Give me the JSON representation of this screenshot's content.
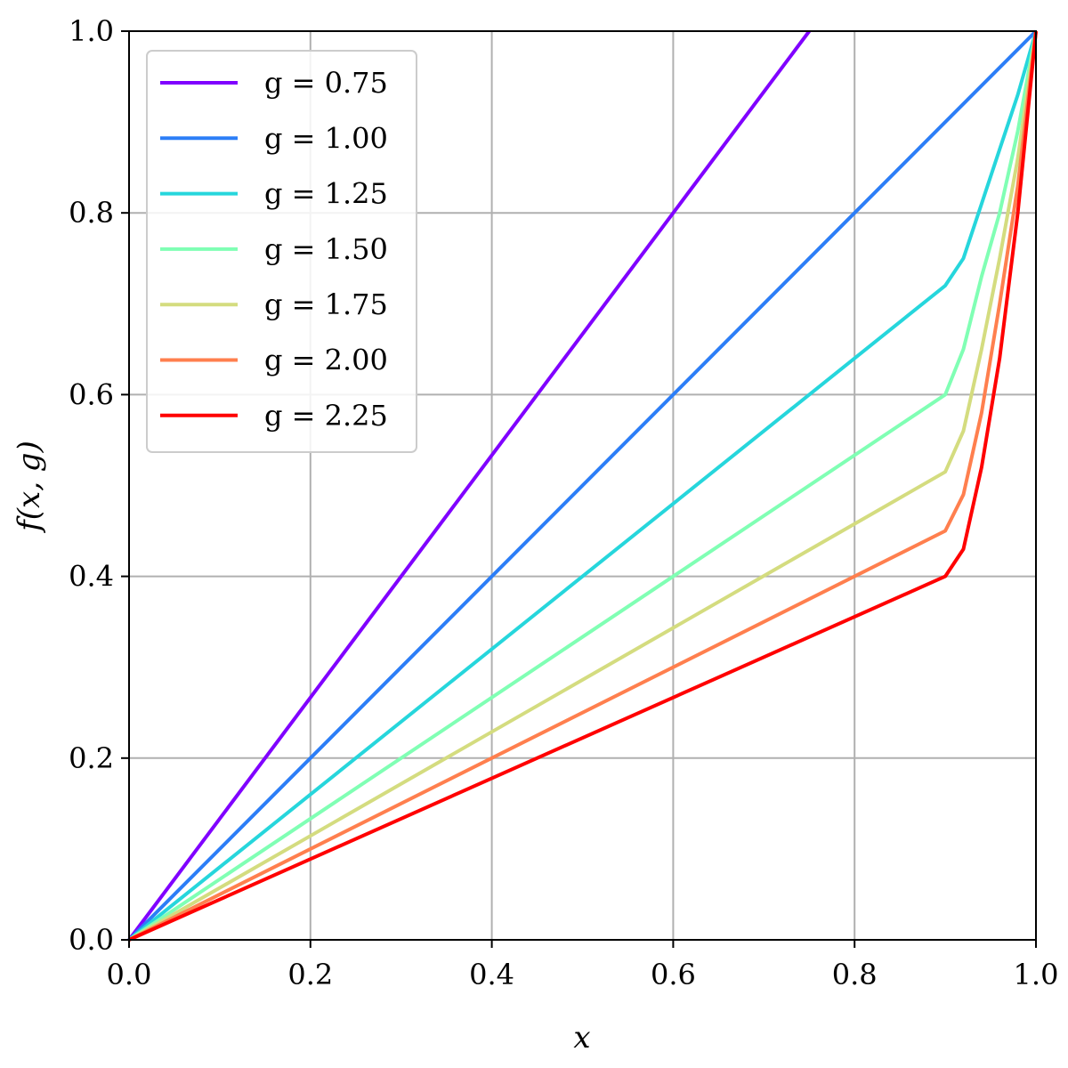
{
  "chart_data": {
    "type": "line",
    "xlabel": "x",
    "ylabel": "f(x, g)",
    "xlim": [
      0,
      1
    ],
    "ylim": [
      0,
      1
    ],
    "grid": true,
    "legend_position": "top-left",
    "xticks": [
      "0.0",
      "0.2",
      "0.4",
      "0.6",
      "0.8",
      "1.0"
    ],
    "yticks": [
      "0.0",
      "0.2",
      "0.4",
      "0.6",
      "0.8",
      "1.0"
    ],
    "series": [
      {
        "name": "g = 0.75",
        "color": "#8000ff",
        "x": [
          0,
          0.75
        ],
        "y": [
          0,
          1.0
        ]
      },
      {
        "name": "g = 1.00",
        "color": "#2c7ef7",
        "x": [
          0,
          1.0
        ],
        "y": [
          0,
          1.0
        ]
      },
      {
        "name": "g = 1.25",
        "color": "#26d6dc",
        "x": [
          0,
          0.9,
          0.92,
          0.94,
          0.96,
          0.98,
          1.0
        ],
        "y": [
          0,
          0.72,
          0.75,
          0.81,
          0.87,
          0.93,
          1.0
        ]
      },
      {
        "name": "g = 1.50",
        "color": "#80ffb4",
        "x": [
          0,
          0.9,
          0.92,
          0.94,
          0.96,
          0.98,
          1.0
        ],
        "y": [
          0,
          0.6,
          0.65,
          0.73,
          0.8,
          0.89,
          1.0
        ]
      },
      {
        "name": "g = 1.75",
        "color": "#d4dc7f",
        "x": [
          0,
          0.9,
          0.92,
          0.94,
          0.96,
          0.98,
          1.0
        ],
        "y": [
          0,
          0.515,
          0.56,
          0.65,
          0.75,
          0.86,
          1.0
        ]
      },
      {
        "name": "g = 2.00",
        "color": "#ff7f4e",
        "x": [
          0,
          0.9,
          0.92,
          0.94,
          0.96,
          0.98,
          1.0
        ],
        "y": [
          0,
          0.45,
          0.49,
          0.58,
          0.7,
          0.83,
          1.0
        ]
      },
      {
        "name": "g = 2.25",
        "color": "#ff0000",
        "x": [
          0,
          0.9,
          0.92,
          0.94,
          0.96,
          0.98,
          1.0
        ],
        "y": [
          0,
          0.4,
          0.43,
          0.52,
          0.64,
          0.8,
          1.0
        ]
      }
    ]
  }
}
